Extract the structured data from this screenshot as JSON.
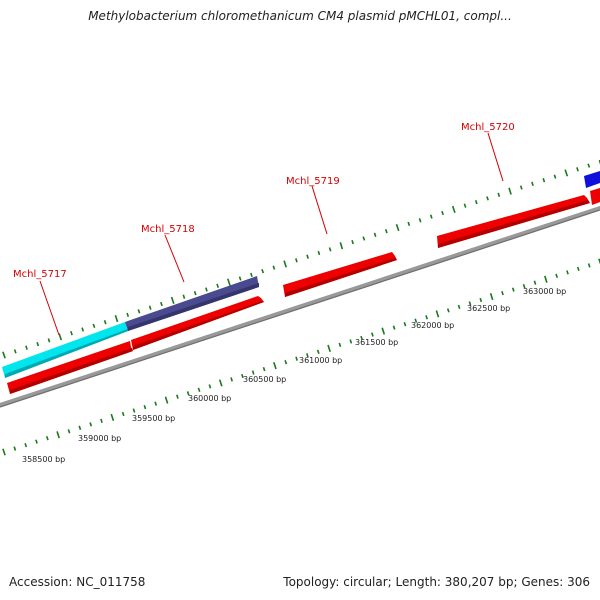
{
  "title": "Methylobacterium chloromethanicum CM4 plasmid pMCHL01, compl...",
  "footer": {
    "accession": "Accession: NC_011758",
    "topology": "Topology: circular; Length: 380,207 bp; Genes: 306"
  },
  "colors": {
    "gene_red": "#ee0000",
    "gene_cyan": "#00e5ee",
    "gene_slate": "#4a4a90",
    "gene_blue": "#1010dd",
    "backbone": "#888888",
    "tick_green": "#1a7a1a",
    "label_red": "#d60000"
  },
  "genes": [
    {
      "name": "Mchl_5717",
      "labeled": true
    },
    {
      "name": "Mchl_5718",
      "labeled": true
    },
    {
      "name": "Mchl_5719",
      "labeled": true
    },
    {
      "name": "Mchl_5720",
      "labeled": true
    }
  ],
  "scale_labels": [
    "358500 bp",
    "359000 bp",
    "359500 bp",
    "360000 bp",
    "360500 bp",
    "361000 bp",
    "361500 bp",
    "362000 bp",
    "362500 bp",
    "363000 bp"
  ]
}
